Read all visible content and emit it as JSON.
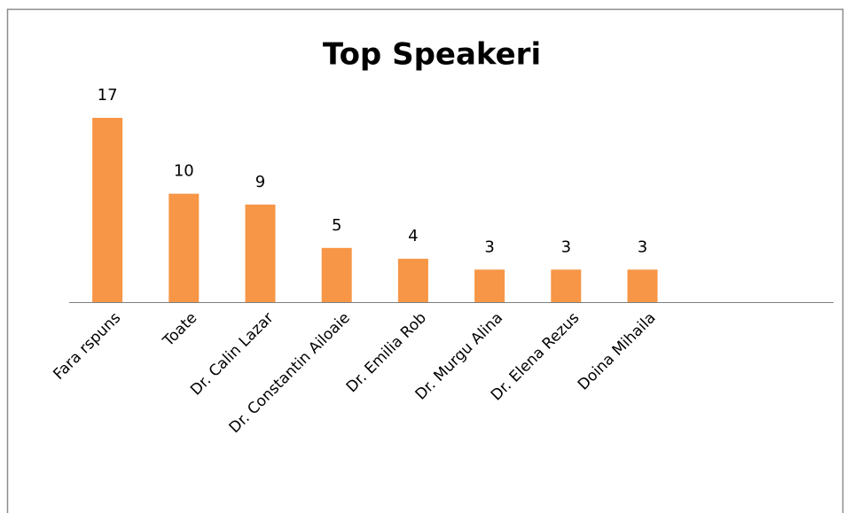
{
  "chart_data": {
    "type": "bar",
    "title": "Top Speakeri",
    "categories": [
      "Fara rspuns",
      "Toate",
      "Dr. Calin Lazar",
      "Dr. Constantin Ailoaie",
      "Dr. Emilia Rob",
      "Dr. Murgu Alina",
      "Dr. Elena Rezus",
      "Doina Mihaila",
      null,
      null
    ],
    "values": [
      17,
      10,
      9,
      5,
      4,
      3,
      3,
      3,
      null,
      null
    ],
    "color": "#f79646"
  }
}
